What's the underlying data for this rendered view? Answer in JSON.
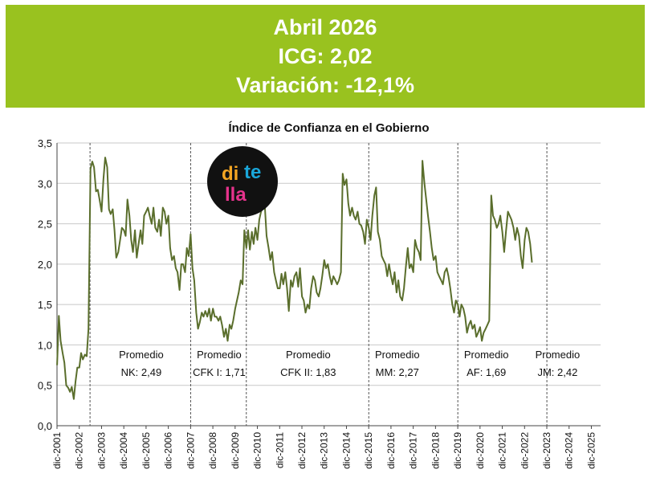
{
  "banner": {
    "line1": "Abril 2026",
    "line2": "ICG: 2,02",
    "line3": "Variación: -12,1%",
    "background": "#99c21f",
    "text_color": "#ffffff"
  },
  "logo": {
    "text": "ditella",
    "background": "#111111"
  },
  "chart_data": {
    "type": "line",
    "title": "Índice de Confianza en el Gobierno",
    "xlabel": "",
    "ylabel": "",
    "ylim": [
      0,
      3.5
    ],
    "yticks": [
      "0,0",
      "0,5",
      "1,0",
      "1,5",
      "2,0",
      "2,5",
      "3,0",
      "3,5"
    ],
    "xlim": [
      2001.917,
      2026.333
    ],
    "xticks": [
      "dic-2001",
      "dic-2002",
      "dic-2003",
      "dic-2004",
      "dic-2005",
      "dic-2006",
      "dic-2007",
      "dic-2008",
      "dic-2009",
      "dic-2010",
      "dic-2011",
      "dic-2012",
      "dic-2013",
      "dic-2014",
      "dic-2015",
      "dic-2016",
      "dic-2017",
      "dic-2018",
      "dic-2019",
      "dic-2020",
      "dic-2021",
      "dic-2022",
      "dic-2023",
      "dic-2024",
      "dic-2025"
    ],
    "grid": true,
    "line_color": "#5a6e2c",
    "government_changes": [
      2003.4,
      2007.92,
      2010.42,
      2015.92,
      2019.92,
      2023.92
    ],
    "annotations": [
      {
        "line1": "Promedio",
        "line2": "NK: 2,49",
        "x": 2005.7
      },
      {
        "line1": "Promedio",
        "line2": "CFK I: 1,71",
        "x": 2009.2
      },
      {
        "line1": "Promedio",
        "line2": "CFK II: 1,83",
        "x": 2013.2
      },
      {
        "line1": "Promedio",
        "line2": "MM: 2,27",
        "x": 2017.2
      },
      {
        "line1": "Promedio",
        "line2": "AF: 1,69",
        "x": 2021.2
      },
      {
        "line1": "Promedio",
        "line2": "JM: 2,42",
        "x": 2024.4
      }
    ],
    "series": [
      {
        "points": [
          [
            2001.92,
            0.75
          ],
          [
            2002.0,
            1.36
          ],
          [
            2002.08,
            1.05
          ],
          [
            2002.17,
            0.9
          ],
          [
            2002.25,
            0.78
          ],
          [
            2002.33,
            0.5
          ],
          [
            2002.42,
            0.47
          ],
          [
            2002.5,
            0.42
          ],
          [
            2002.58,
            0.48
          ],
          [
            2002.67,
            0.33
          ],
          [
            2002.75,
            0.55
          ],
          [
            2002.83,
            0.72
          ],
          [
            2002.92,
            0.72
          ],
          [
            2003.0,
            0.9
          ],
          [
            2003.08,
            0.82
          ],
          [
            2003.17,
            0.88
          ],
          [
            2003.25,
            0.86
          ],
          [
            2003.33,
            1.2
          ],
          [
            2003.42,
            3.18
          ],
          [
            2003.5,
            3.27
          ],
          [
            2003.58,
            3.2
          ],
          [
            2003.67,
            2.9
          ],
          [
            2003.75,
            2.92
          ],
          [
            2003.83,
            2.8
          ],
          [
            2003.92,
            2.65
          ],
          [
            2004.0,
            3.05
          ],
          [
            2004.08,
            3.32
          ],
          [
            2004.17,
            3.2
          ],
          [
            2004.25,
            2.68
          ],
          [
            2004.33,
            2.62
          ],
          [
            2004.42,
            2.68
          ],
          [
            2004.5,
            2.42
          ],
          [
            2004.58,
            2.08
          ],
          [
            2004.67,
            2.15
          ],
          [
            2004.75,
            2.3
          ],
          [
            2004.83,
            2.45
          ],
          [
            2004.92,
            2.42
          ],
          [
            2005.0,
            2.35
          ],
          [
            2005.08,
            2.8
          ],
          [
            2005.17,
            2.6
          ],
          [
            2005.25,
            2.3
          ],
          [
            2005.33,
            2.15
          ],
          [
            2005.42,
            2.42
          ],
          [
            2005.5,
            2.08
          ],
          [
            2005.58,
            2.25
          ],
          [
            2005.67,
            2.42
          ],
          [
            2005.75,
            2.25
          ],
          [
            2005.83,
            2.6
          ],
          [
            2005.92,
            2.65
          ],
          [
            2006.0,
            2.7
          ],
          [
            2006.08,
            2.6
          ],
          [
            2006.17,
            2.5
          ],
          [
            2006.25,
            2.7
          ],
          [
            2006.33,
            2.45
          ],
          [
            2006.42,
            2.4
          ],
          [
            2006.5,
            2.55
          ],
          [
            2006.58,
            2.35
          ],
          [
            2006.67,
            2.7
          ],
          [
            2006.75,
            2.65
          ],
          [
            2006.83,
            2.5
          ],
          [
            2006.92,
            2.6
          ],
          [
            2007.0,
            2.2
          ],
          [
            2007.08,
            2.05
          ],
          [
            2007.17,
            2.1
          ],
          [
            2007.25,
            1.95
          ],
          [
            2007.33,
            1.9
          ],
          [
            2007.42,
            1.68
          ],
          [
            2007.5,
            2.0
          ],
          [
            2007.58,
            2.0
          ],
          [
            2007.67,
            1.9
          ],
          [
            2007.75,
            2.2
          ],
          [
            2007.83,
            2.1
          ],
          [
            2007.92,
            2.37
          ],
          [
            2008.0,
            1.95
          ],
          [
            2008.08,
            1.8
          ],
          [
            2008.17,
            1.4
          ],
          [
            2008.25,
            1.2
          ],
          [
            2008.33,
            1.28
          ],
          [
            2008.42,
            1.4
          ],
          [
            2008.5,
            1.35
          ],
          [
            2008.58,
            1.42
          ],
          [
            2008.67,
            1.35
          ],
          [
            2008.75,
            1.45
          ],
          [
            2008.83,
            1.3
          ],
          [
            2008.92,
            1.45
          ],
          [
            2009.0,
            1.35
          ],
          [
            2009.08,
            1.35
          ],
          [
            2009.17,
            1.3
          ],
          [
            2009.25,
            1.35
          ],
          [
            2009.33,
            1.25
          ],
          [
            2009.42,
            1.1
          ],
          [
            2009.5,
            1.2
          ],
          [
            2009.58,
            1.05
          ],
          [
            2009.67,
            1.25
          ],
          [
            2009.75,
            1.2
          ],
          [
            2009.83,
            1.3
          ],
          [
            2009.92,
            1.45
          ],
          [
            2010.0,
            1.55
          ],
          [
            2010.08,
            1.65
          ],
          [
            2010.17,
            1.8
          ],
          [
            2010.25,
            1.75
          ],
          [
            2010.33,
            2.42
          ],
          [
            2010.42,
            2.2
          ],
          [
            2010.5,
            2.42
          ],
          [
            2010.58,
            2.18
          ],
          [
            2010.67,
            2.4
          ],
          [
            2010.75,
            2.25
          ],
          [
            2010.83,
            2.45
          ],
          [
            2010.92,
            2.3
          ],
          [
            2011.0,
            2.55
          ],
          [
            2011.08,
            2.65
          ],
          [
            2011.17,
            2.72
          ],
          [
            2011.25,
            2.72
          ],
          [
            2011.33,
            2.35
          ],
          [
            2011.42,
            2.2
          ],
          [
            2011.5,
            2.05
          ],
          [
            2011.58,
            2.15
          ],
          [
            2011.67,
            1.9
          ],
          [
            2011.75,
            1.8
          ],
          [
            2011.83,
            1.7
          ],
          [
            2011.92,
            1.7
          ],
          [
            2012.0,
            1.88
          ],
          [
            2012.08,
            1.75
          ],
          [
            2012.17,
            1.9
          ],
          [
            2012.25,
            1.7
          ],
          [
            2012.33,
            1.42
          ],
          [
            2012.42,
            1.8
          ],
          [
            2012.5,
            1.72
          ],
          [
            2012.58,
            1.85
          ],
          [
            2012.67,
            1.9
          ],
          [
            2012.75,
            1.72
          ],
          [
            2012.83,
            1.95
          ],
          [
            2012.92,
            1.6
          ],
          [
            2013.0,
            1.55
          ],
          [
            2013.08,
            1.4
          ],
          [
            2013.17,
            1.5
          ],
          [
            2013.25,
            1.45
          ],
          [
            2013.33,
            1.7
          ],
          [
            2013.42,
            1.85
          ],
          [
            2013.5,
            1.8
          ],
          [
            2013.58,
            1.65
          ],
          [
            2013.67,
            1.6
          ],
          [
            2013.75,
            1.7
          ],
          [
            2013.83,
            1.85
          ],
          [
            2013.92,
            2.05
          ],
          [
            2014.0,
            1.95
          ],
          [
            2014.08,
            2.0
          ],
          [
            2014.17,
            1.85
          ],
          [
            2014.25,
            1.75
          ],
          [
            2014.33,
            1.85
          ],
          [
            2014.42,
            1.8
          ],
          [
            2014.5,
            1.75
          ],
          [
            2014.58,
            1.8
          ],
          [
            2014.67,
            1.9
          ],
          [
            2014.75,
            3.12
          ],
          [
            2014.83,
            2.98
          ],
          [
            2014.92,
            3.05
          ],
          [
            2015.0,
            2.75
          ],
          [
            2015.08,
            2.6
          ],
          [
            2015.17,
            2.7
          ],
          [
            2015.25,
            2.6
          ],
          [
            2015.33,
            2.55
          ],
          [
            2015.42,
            2.65
          ],
          [
            2015.5,
            2.5
          ],
          [
            2015.58,
            2.48
          ],
          [
            2015.67,
            2.4
          ],
          [
            2015.75,
            2.25
          ],
          [
            2015.83,
            2.55
          ],
          [
            2015.92,
            2.45
          ],
          [
            2016.0,
            2.3
          ],
          [
            2016.08,
            2.6
          ],
          [
            2016.17,
            2.85
          ],
          [
            2016.25,
            2.95
          ],
          [
            2016.33,
            2.4
          ],
          [
            2016.42,
            2.3
          ],
          [
            2016.5,
            2.1
          ],
          [
            2016.58,
            2.05
          ],
          [
            2016.67,
            2.0
          ],
          [
            2016.75,
            1.85
          ],
          [
            2016.83,
            2.0
          ],
          [
            2016.92,
            1.85
          ],
          [
            2017.0,
            1.75
          ],
          [
            2017.08,
            1.9
          ],
          [
            2017.17,
            1.65
          ],
          [
            2017.25,
            1.8
          ],
          [
            2017.33,
            1.6
          ],
          [
            2017.42,
            1.55
          ],
          [
            2017.5,
            1.7
          ],
          [
            2017.58,
            1.95
          ],
          [
            2017.67,
            2.2
          ],
          [
            2017.75,
            1.95
          ],
          [
            2017.83,
            2.0
          ],
          [
            2017.92,
            1.9
          ],
          [
            2018.0,
            2.3
          ],
          [
            2018.08,
            2.2
          ],
          [
            2018.17,
            2.15
          ],
          [
            2018.25,
            2.05
          ],
          [
            2018.33,
            3.28
          ],
          [
            2018.42,
            3.0
          ],
          [
            2018.5,
            2.8
          ],
          [
            2018.58,
            2.6
          ],
          [
            2018.67,
            2.4
          ],
          [
            2018.75,
            2.2
          ],
          [
            2018.83,
            2.05
          ],
          [
            2018.92,
            2.1
          ],
          [
            2019.0,
            1.9
          ],
          [
            2019.08,
            1.85
          ],
          [
            2019.17,
            1.8
          ],
          [
            2019.25,
            1.75
          ],
          [
            2019.33,
            1.9
          ],
          [
            2019.42,
            1.95
          ],
          [
            2019.5,
            1.85
          ],
          [
            2019.58,
            1.7
          ],
          [
            2019.67,
            1.5
          ],
          [
            2019.75,
            1.4
          ],
          [
            2019.83,
            1.55
          ],
          [
            2019.92,
            1.5
          ],
          [
            2020.0,
            1.35
          ],
          [
            2020.08,
            1.5
          ],
          [
            2020.17,
            1.45
          ],
          [
            2020.25,
            1.35
          ],
          [
            2020.33,
            1.15
          ],
          [
            2020.42,
            1.25
          ],
          [
            2020.5,
            1.3
          ],
          [
            2020.58,
            1.2
          ],
          [
            2020.67,
            1.25
          ],
          [
            2020.75,
            1.1
          ],
          [
            2020.83,
            1.15
          ],
          [
            2020.92,
            1.22
          ],
          [
            2021.0,
            1.05
          ],
          [
            2021.08,
            1.15
          ],
          [
            2021.17,
            1.2
          ],
          [
            2021.25,
            1.25
          ],
          [
            2021.33,
            1.3
          ],
          [
            2021.42,
            2.85
          ],
          [
            2021.5,
            2.6
          ],
          [
            2021.58,
            2.55
          ],
          [
            2021.67,
            2.45
          ],
          [
            2021.75,
            2.5
          ],
          [
            2021.83,
            2.6
          ],
          [
            2021.92,
            2.4
          ],
          [
            2022.0,
            2.15
          ],
          [
            2022.08,
            2.4
          ],
          [
            2022.17,
            2.65
          ],
          [
            2022.25,
            2.6
          ],
          [
            2022.33,
            2.55
          ],
          [
            2022.42,
            2.45
          ],
          [
            2022.5,
            2.3
          ],
          [
            2022.58,
            2.45
          ],
          [
            2022.67,
            2.35
          ],
          [
            2022.75,
            2.1
          ],
          [
            2022.83,
            1.95
          ],
          [
            2022.92,
            2.3
          ],
          [
            2023.0,
            2.45
          ],
          [
            2023.08,
            2.4
          ],
          [
            2023.17,
            2.25
          ],
          [
            2023.25,
            2.02
          ]
        ]
      }
    ]
  }
}
